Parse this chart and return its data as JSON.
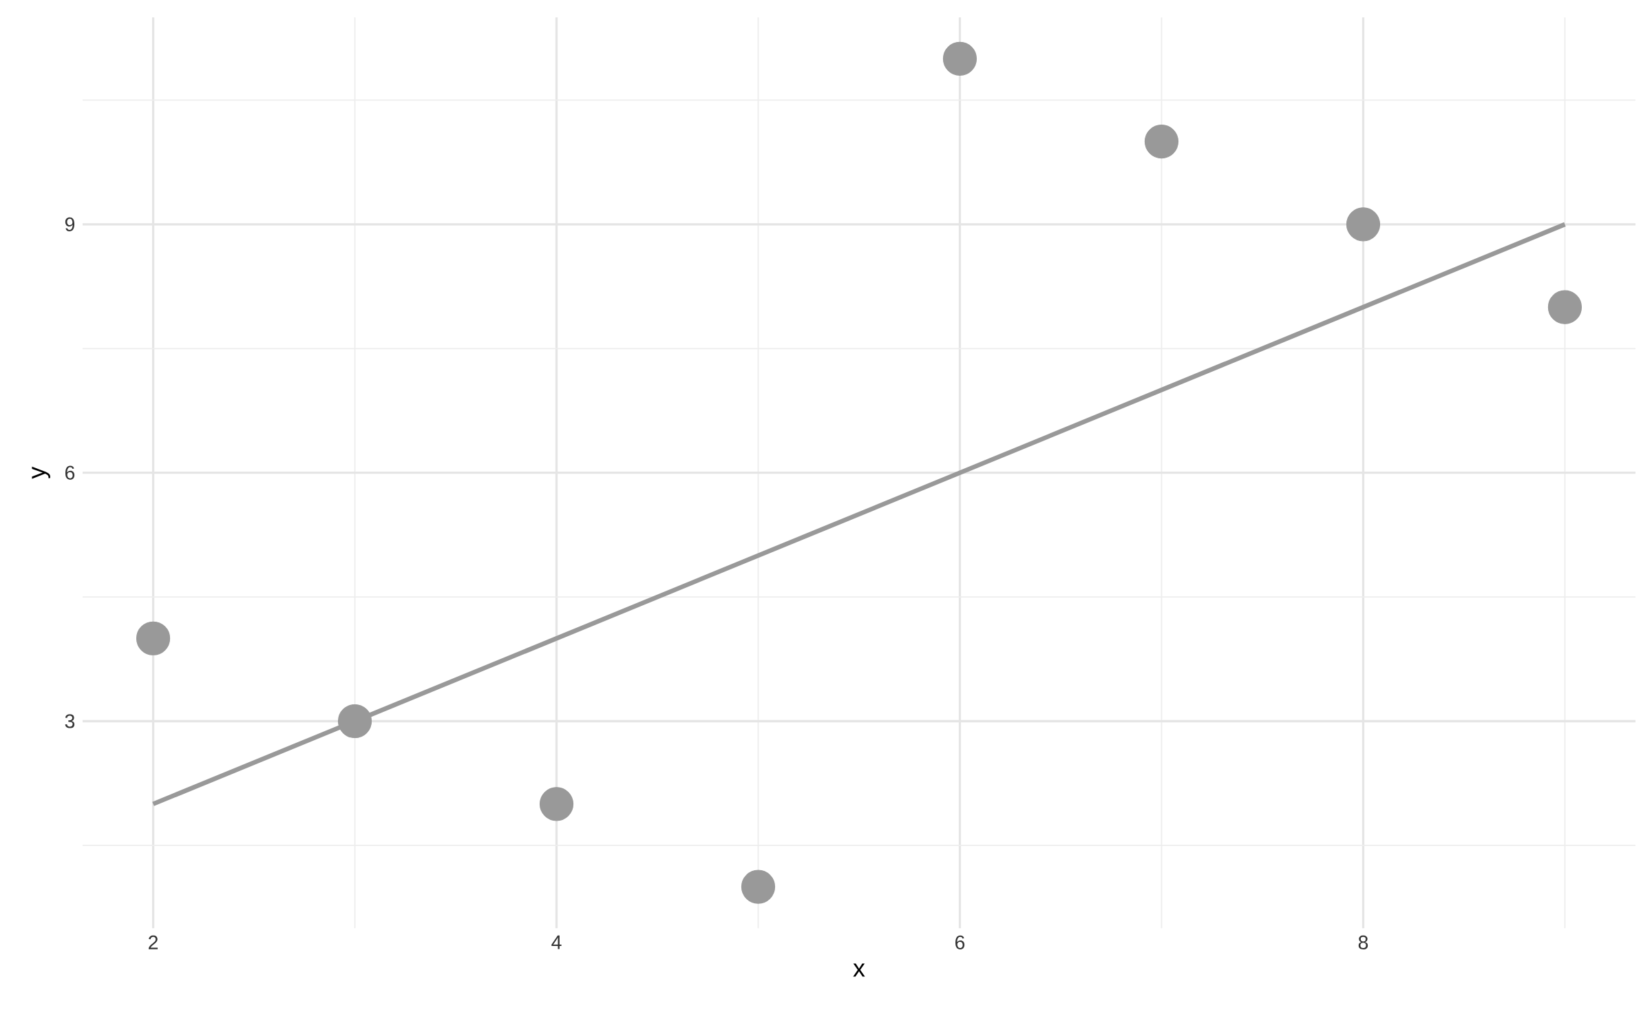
{
  "chart_data": {
    "type": "scatter",
    "xlabel": "x",
    "ylabel": "y",
    "xlim": [
      1.65,
      9.35
    ],
    "ylim": [
      0.5,
      11.5
    ],
    "xticks": [
      2,
      {
        "value": 3,
        "label": null
      },
      4,
      {
        "value": 5,
        "label": null
      },
      6,
      {
        "value": 7,
        "label": null
      },
      8,
      {
        "value": 9,
        "label": null
      }
    ],
    "yticks": [
      {
        "value": 1.5,
        "label": null
      },
      3,
      {
        "value": 4.5,
        "label": null
      },
      6,
      {
        "value": 7.5,
        "label": null
      },
      9,
      {
        "value": 10.5,
        "label": null
      }
    ],
    "grid": true,
    "marker": "circle",
    "series": [
      {
        "color": "#999999",
        "x": [
          2,
          3,
          4,
          5,
          6,
          7,
          8,
          9
        ],
        "values": [
          4,
          3,
          2,
          1,
          11,
          10,
          9,
          8
        ]
      },
      {
        "type": "line",
        "color": "#999999",
        "x": [
          2,
          9
        ],
        "values": [
          2,
          9
        ],
        "marker": "none",
        "line_style": "solid"
      }
    ]
  }
}
